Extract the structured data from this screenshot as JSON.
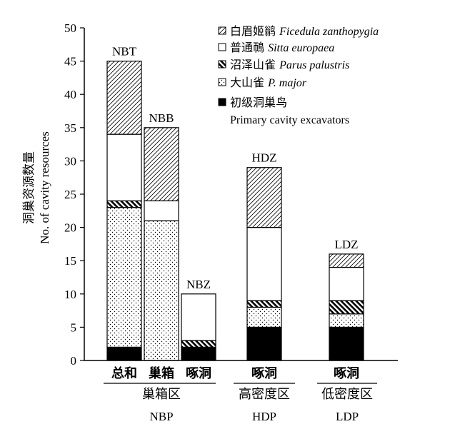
{
  "chart_data": {
    "type": "bar",
    "stacked": true,
    "y_axis": {
      "title_cn": "洞巢资源数量",
      "title_en": "No. of cavity resources",
      "ylim": [
        0,
        50
      ],
      "ticks": [
        "0",
        "5",
        "10",
        "15",
        "20",
        "25",
        "30",
        "35",
        "40",
        "45",
        "50"
      ]
    },
    "categories": [
      {
        "label": "总和",
        "bar_label": "NBT",
        "group": 0
      },
      {
        "label": "巢箱",
        "bar_label": "NBB",
        "group": 0
      },
      {
        "label": "啄洞",
        "bar_label": "NBZ",
        "group": 0
      },
      {
        "label": "啄洞",
        "bar_label": "HDZ",
        "group": 1
      },
      {
        "label": "啄洞",
        "bar_label": "LDZ",
        "group": 2
      }
    ],
    "groups": [
      {
        "cn": "巢箱区",
        "en": "NBP"
      },
      {
        "cn": "高密度区",
        "en": "HDP"
      },
      {
        "cn": "低密度区",
        "en": "LDP"
      }
    ],
    "series": [
      {
        "key": "primary",
        "name_cn": "初级洞巢鸟",
        "name_en": "Primary cavity excavators",
        "values": [
          2,
          0,
          2,
          5,
          5
        ]
      },
      {
        "key": "major",
        "name_cn": "大山雀",
        "name_en": "P. major",
        "values": [
          21,
          21,
          0,
          3,
          2
        ]
      },
      {
        "key": "palustris",
        "name_cn": "沼泽山雀",
        "name_en": "Parus palustris",
        "values": [
          1,
          0,
          1,
          1,
          2
        ]
      },
      {
        "key": "europaea",
        "name_cn": "普通鳾",
        "name_en": "Sitta europaea",
        "values": [
          10,
          3,
          7,
          11,
          5
        ]
      },
      {
        "key": "ficedula",
        "name_cn": "白眉姬鹟",
        "name_en": "Ficedula zanthopygia",
        "values": [
          11,
          11,
          0,
          9,
          2
        ]
      }
    ],
    "legend_order": [
      "ficedula",
      "europaea",
      "palustris",
      "major",
      "primary"
    ],
    "legend_position": "top-right",
    "grid": false
  }
}
